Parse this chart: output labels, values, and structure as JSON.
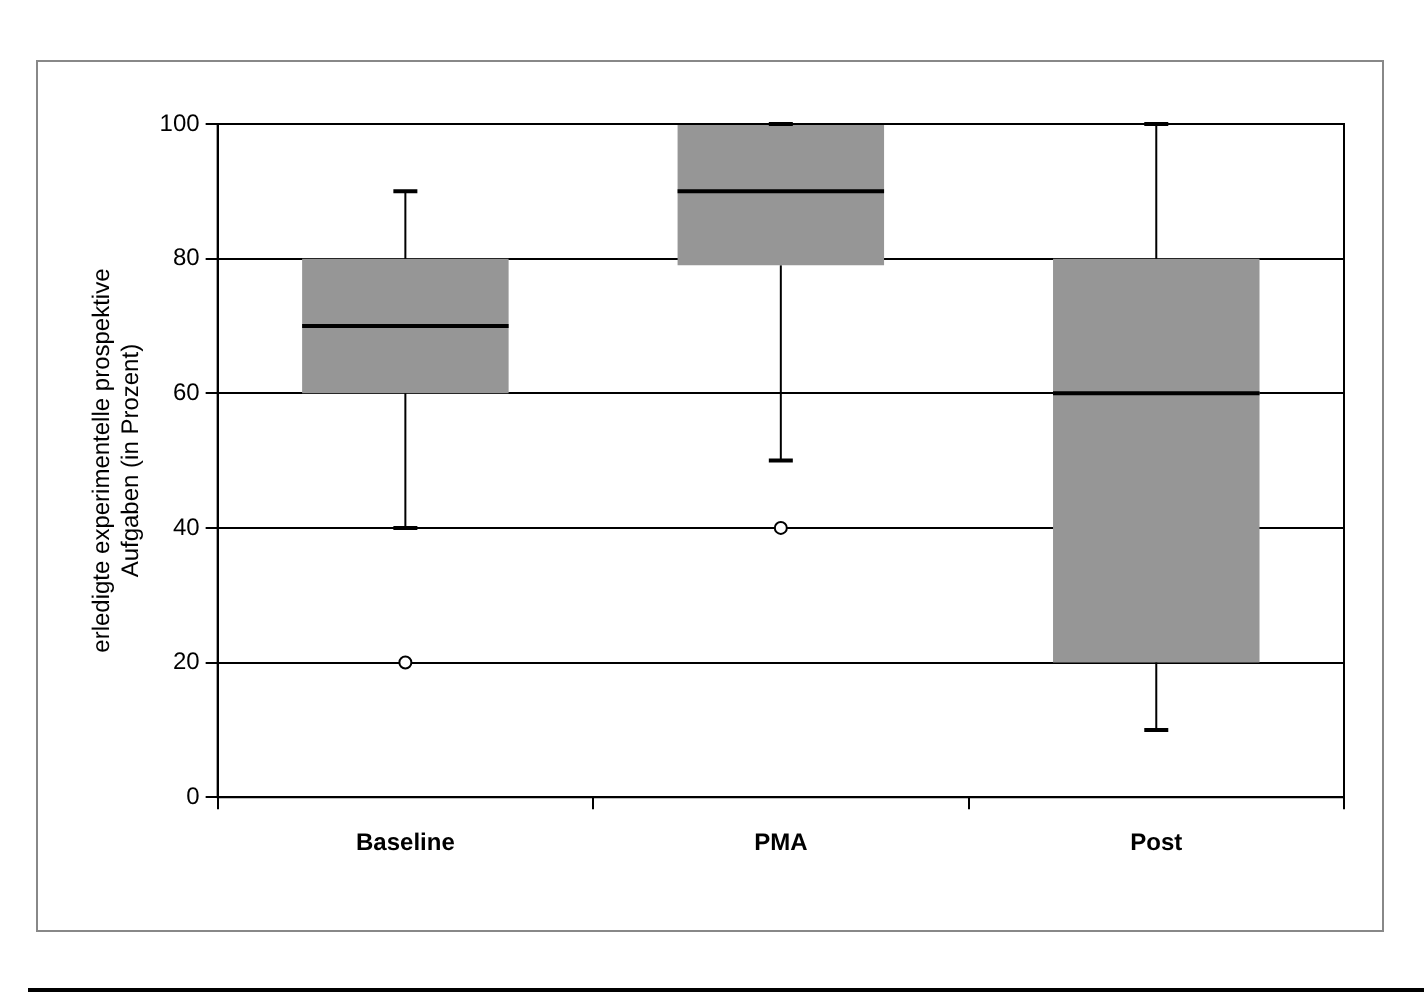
{
  "chart_data": {
    "type": "box",
    "ylabel": "erledigte experimentelle prospektive\nAufgaben (in Prozent)",
    "categories": [
      "Baseline",
      "PMA",
      "Post"
    ],
    "color": "#969696",
    "boxes": [
      {
        "low": 40,
        "q1": 60,
        "median": 70,
        "q3": 80,
        "high": 90,
        "outliers": [
          20
        ]
      },
      {
        "low": 50,
        "q1": 79,
        "median": 90,
        "q3": 100,
        "high": 100,
        "outliers": [
          40
        ]
      },
      {
        "low": 10,
        "q1": 20,
        "median": 60,
        "q3": 80,
        "high": 100
      }
    ],
    "ylim": [
      0,
      100
    ],
    "yticks": [
      0,
      20,
      40,
      60,
      80,
      100
    ],
    "grid": "y",
    "legend": false
  }
}
